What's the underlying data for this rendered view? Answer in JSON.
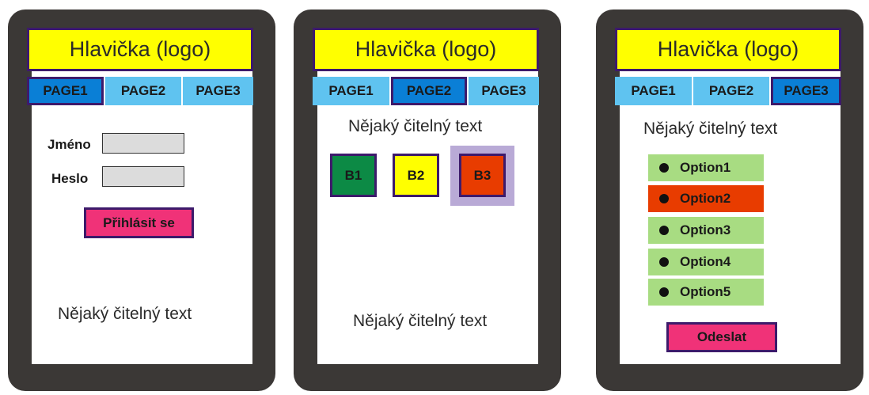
{
  "devices": [
    {
      "header": "Hlavička (logo)",
      "tabs": [
        "PAGE1",
        "PAGE2",
        "PAGE3"
      ],
      "active_tab": "PAGE1",
      "login": {
        "name_label": "Jméno",
        "password_label": "Heslo",
        "submit": "Přihlásit se"
      },
      "text": "Nějaký čitelný text"
    },
    {
      "header": "Hlavička (logo)",
      "tabs": [
        "PAGE1",
        "PAGE2",
        "PAGE3"
      ],
      "active_tab": "PAGE2",
      "text_top": "Nějaký čitelný text",
      "buttons": [
        {
          "label": "B1",
          "color": "#0c8a45"
        },
        {
          "label": "B2",
          "color": "#ffff00"
        },
        {
          "label": "B3",
          "color": "#e83c00",
          "highlight": "#b9aad6"
        }
      ],
      "text_bottom": "Nějaký čitelný text"
    },
    {
      "header": "Hlavička (logo)",
      "tabs": [
        "PAGE1",
        "PAGE2",
        "PAGE3"
      ],
      "active_tab": "PAGE3",
      "text": "Nějaký čitelný text",
      "options": [
        "Option1",
        "Option2",
        "Option3",
        "Option4",
        "Option5"
      ],
      "selected_option": "Option2",
      "submit": "Odeslat"
    }
  ],
  "colors": {
    "frame": "#3b3836",
    "header_bg": "#ffff00",
    "tab_bg": "#5fc3f0",
    "tab_active_bg": "#0a7fd6",
    "border": "#3d1a6b",
    "login_button_bg": "#f03278",
    "option_bg": "#a8dc82",
    "option_selected_bg": "#e83c00",
    "input_bg": "#dcdcdc"
  }
}
